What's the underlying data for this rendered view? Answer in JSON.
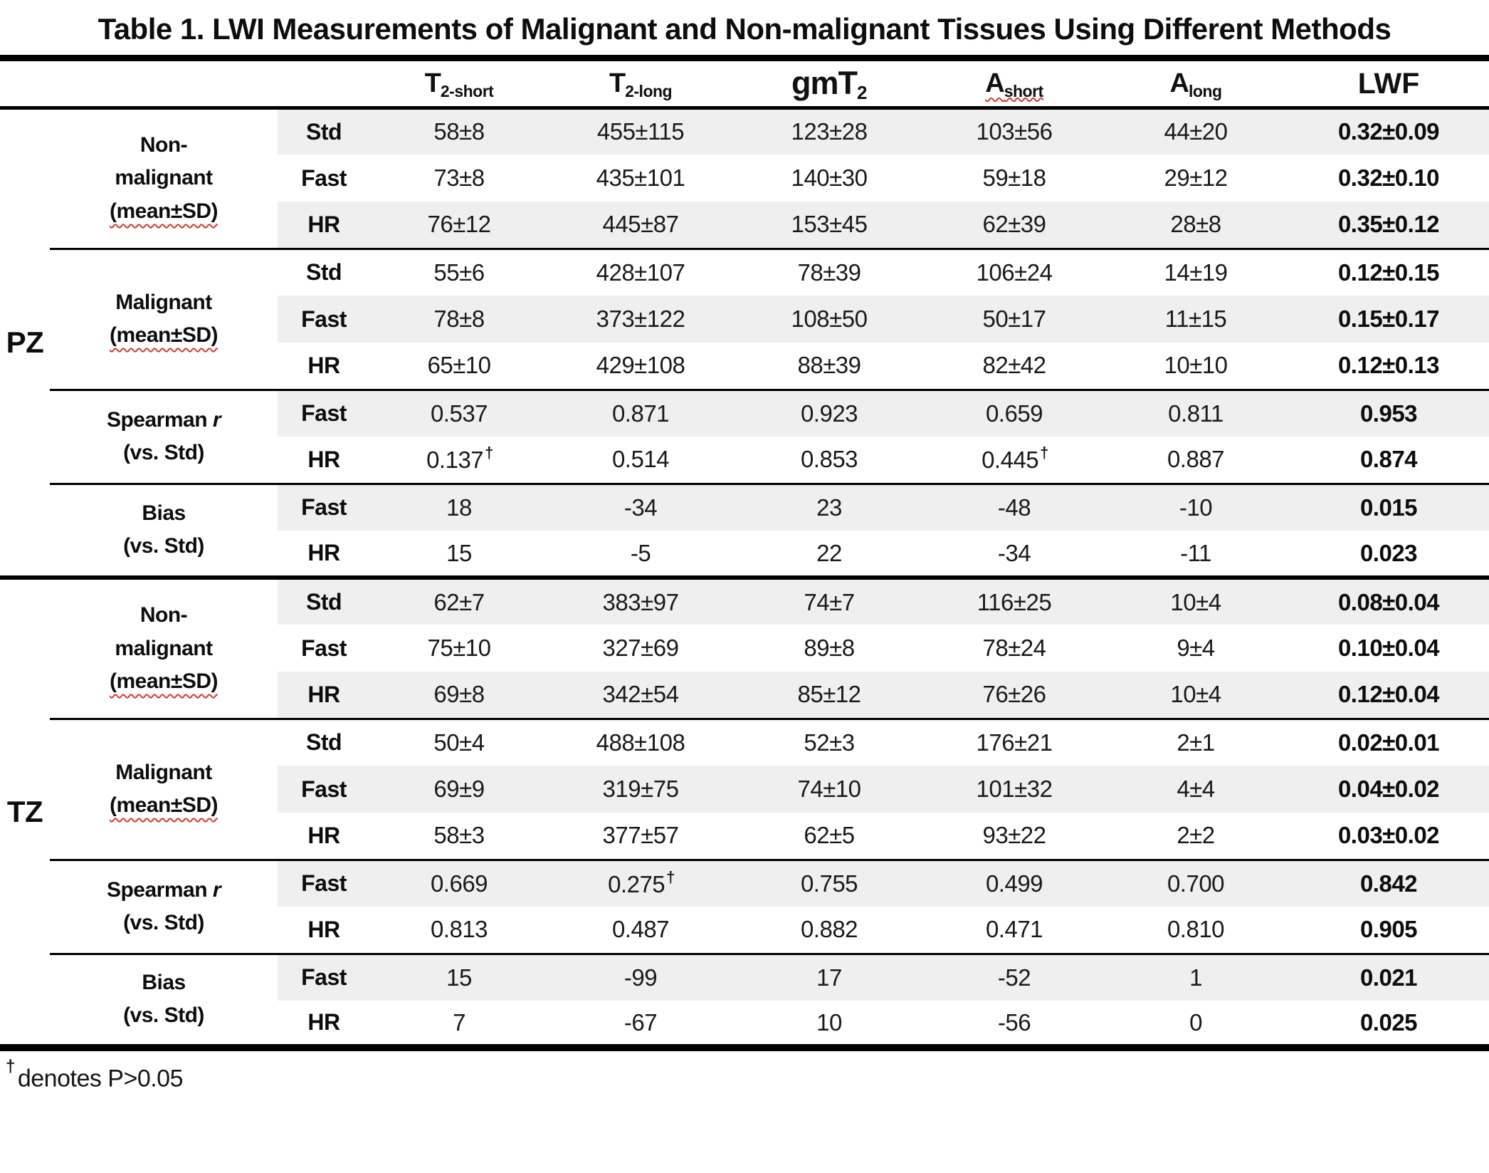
{
  "title": "Table 1. LWI Measurements of Malignant and Non-malignant Tissues Using Different Methods",
  "header": {
    "columns": [
      {
        "main": "T",
        "sub": "2-short"
      },
      {
        "main": "T",
        "sub": "2-long"
      },
      {
        "main": "gmT",
        "sub": "2"
      },
      {
        "main": "A",
        "sub": "short"
      },
      {
        "main": "A",
        "sub": "long"
      },
      {
        "main": "LWF",
        "sub": ""
      }
    ]
  },
  "sections": [
    {
      "zone": "PZ",
      "groups": [
        {
          "label_lines": [
            "Non-",
            "malignant",
            "(mean±SD)"
          ],
          "rows": [
            {
              "method": "Std",
              "values": [
                "58±8",
                "455±115",
                "123±28",
                "103±56",
                "44±20",
                "0.32±0.09"
              ]
            },
            {
              "method": "Fast",
              "values": [
                "73±8",
                "435±101",
                "140±30",
                "59±18",
                "29±12",
                "0.32±0.10"
              ]
            },
            {
              "method": "HR",
              "values": [
                "76±12",
                "445±87",
                "153±45",
                "62±39",
                "28±8",
                "0.35±0.12"
              ]
            }
          ]
        },
        {
          "label_lines": [
            "Malignant",
            "(mean±SD)"
          ],
          "rows": [
            {
              "method": "Std",
              "values": [
                "55±6",
                "428±107",
                "78±39",
                "106±24",
                "14±19",
                "0.12±0.15"
              ]
            },
            {
              "method": "Fast",
              "values": [
                "78±8",
                "373±122",
                "108±50",
                "50±17",
                "11±15",
                "0.15±0.17"
              ]
            },
            {
              "method": "HR",
              "values": [
                "65±10",
                "429±108",
                "88±39",
                "82±42",
                "10±10",
                "0.12±0.13"
              ]
            }
          ]
        },
        {
          "label_lines": [
            "Spearman r",
            "(vs. Std)"
          ],
          "rows": [
            {
              "method": "Fast",
              "values": [
                "0.537",
                "0.871",
                "0.923",
                "0.659",
                "0.811",
                "0.953"
              ]
            },
            {
              "method": "HR",
              "values": [
                "0.137†",
                "0.514",
                "0.853",
                "0.445†",
                "0.887",
                "0.874"
              ]
            }
          ]
        },
        {
          "label_lines": [
            "Bias",
            "(vs. Std)"
          ],
          "rows": [
            {
              "method": "Fast",
              "values": [
                "18",
                "-34",
                "23",
                "-48",
                "-10",
                "0.015"
              ]
            },
            {
              "method": "HR",
              "values": [
                "15",
                "-5",
                "22",
                "-34",
                "-11",
                "0.023"
              ]
            }
          ]
        }
      ]
    },
    {
      "zone": "TZ",
      "groups": [
        {
          "label_lines": [
            "Non-",
            "malignant",
            "(mean±SD)"
          ],
          "rows": [
            {
              "method": "Std",
              "values": [
                "62±7",
                "383±97",
                "74±7",
                "116±25",
                "10±4",
                "0.08±0.04"
              ]
            },
            {
              "method": "Fast",
              "values": [
                "75±10",
                "327±69",
                "89±8",
                "78±24",
                "9±4",
                "0.10±0.04"
              ]
            },
            {
              "method": "HR",
              "values": [
                "69±8",
                "342±54",
                "85±12",
                "76±26",
                "10±4",
                "0.12±0.04"
              ]
            }
          ]
        },
        {
          "label_lines": [
            "Malignant",
            "(mean±SD)"
          ],
          "rows": [
            {
              "method": "Std",
              "values": [
                "50±4",
                "488±108",
                "52±3",
                "176±21",
                "2±1",
                "0.02±0.01"
              ]
            },
            {
              "method": "Fast",
              "values": [
                "69±9",
                "319±75",
                "74±10",
                "101±32",
                "4±4",
                "0.04±0.02"
              ]
            },
            {
              "method": "HR",
              "values": [
                "58±3",
                "377±57",
                "62±5",
                "93±22",
                "2±2",
                "0.03±0.02"
              ]
            }
          ]
        },
        {
          "label_lines": [
            "Spearman r",
            "(vs. Std)"
          ],
          "rows": [
            {
              "method": "Fast",
              "values": [
                "0.669",
                "0.275†",
                "0.755",
                "0.499",
                "0.700",
                "0.842"
              ]
            },
            {
              "method": "HR",
              "values": [
                "0.813",
                "0.487",
                "0.882",
                "0.471",
                "0.810",
                "0.905"
              ]
            }
          ]
        },
        {
          "label_lines": [
            "Bias",
            "(vs. Std)"
          ],
          "rows": [
            {
              "method": "Fast",
              "values": [
                "15",
                "-99",
                "17",
                "-52",
                "1",
                "0.021"
              ]
            },
            {
              "method": "HR",
              "values": [
                "7",
                "-67",
                "10",
                "-56",
                "0",
                "0.025"
              ]
            }
          ]
        }
      ]
    }
  ],
  "footnote": {
    "symbol": "†",
    "text": "denotes P>0.05"
  },
  "colors": {
    "stripe": "#efefef",
    "rule": "#000000",
    "squiggle_red": "#d23b31",
    "text": "#111111"
  }
}
